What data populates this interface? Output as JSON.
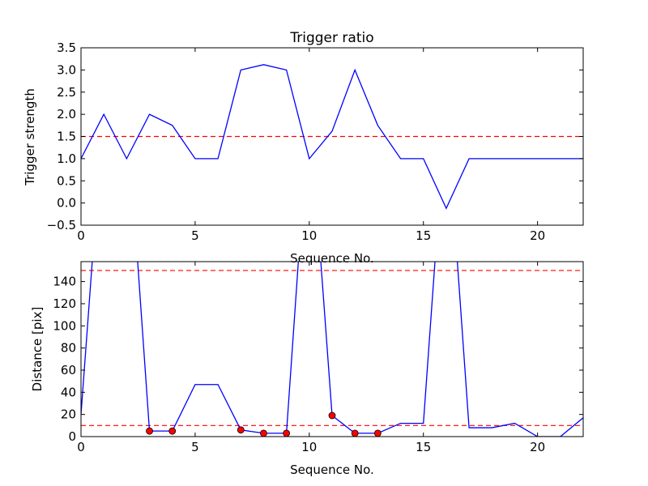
{
  "chart_data": [
    {
      "type": "line",
      "title": "Trigger ratio",
      "xlabel": "Sequence No.",
      "ylabel": "Trigger strength",
      "xlim": [
        0,
        22
      ],
      "ylim": [
        -0.5,
        3.5
      ],
      "xticks": [
        0,
        5,
        10,
        15,
        20
      ],
      "xtick_labels": [
        "0",
        "5",
        "10",
        "15",
        "20"
      ],
      "yticks": [
        -0.5,
        0.0,
        0.5,
        1.0,
        1.5,
        2.0,
        2.5,
        3.0,
        3.5
      ],
      "ytick_labels": [
        "−0.5",
        "0.0",
        "0.5",
        "1.0",
        "1.5",
        "2.0",
        "2.5",
        "3.0",
        "3.5"
      ],
      "grid": false,
      "series": [
        {
          "color": "#0000ff",
          "x": [
            0,
            1,
            2,
            3,
            4,
            5,
            6,
            7,
            8,
            9,
            10,
            11,
            12,
            13,
            14,
            15,
            16,
            17,
            18,
            19,
            20,
            21,
            22
          ],
          "y": [
            1.0,
            2.0,
            1.0,
            2.0,
            1.75,
            1.0,
            1.0,
            3.0,
            3.12,
            3.0,
            1.0,
            1.62,
            3.0,
            1.75,
            1.0,
            1.0,
            -0.12,
            1.0,
            1.0,
            1.0,
            1.0,
            1.0,
            1.0
          ]
        }
      ],
      "hlines": [
        {
          "y": 1.5,
          "color": "#ff0000",
          "style": "dashed"
        }
      ]
    },
    {
      "type": "line",
      "title": "",
      "xlabel": "Sequence No.",
      "ylabel": "Distance [pix]",
      "xlim": [
        0,
        22
      ],
      "ylim": [
        0,
        158
      ],
      "xticks": [
        0,
        5,
        10,
        15,
        20
      ],
      "xtick_labels": [
        "0",
        "5",
        "10",
        "15",
        "20"
      ],
      "yticks": [
        0,
        20,
        40,
        60,
        80,
        100,
        120,
        140
      ],
      "ytick_labels": [
        "0",
        "20",
        "40",
        "60",
        "80",
        "100",
        "120",
        "140"
      ],
      "grid": false,
      "series": [
        {
          "color": "#0000ff",
          "x": [
            0,
            1,
            2,
            3,
            4,
            5,
            6,
            7,
            8,
            9,
            10,
            11,
            12,
            13,
            14,
            15,
            16,
            17,
            18,
            19,
            20,
            21,
            22
          ],
          "y": [
            20,
            300,
            300,
            5,
            5,
            47,
            47,
            6,
            3,
            3,
            300,
            19,
            3,
            3,
            12,
            12,
            300,
            8,
            8,
            12,
            0,
            0,
            17
          ]
        }
      ],
      "markers": {
        "color": "#ff0000",
        "x": [
          3,
          4,
          7,
          8,
          9,
          11,
          12,
          13
        ],
        "y": [
          5,
          5,
          6,
          3,
          3,
          19,
          3,
          3
        ]
      },
      "hlines": [
        {
          "y": 150,
          "color": "#ff0000",
          "style": "dashed"
        },
        {
          "y": 10,
          "color": "#ff0000",
          "style": "dashed"
        }
      ]
    }
  ]
}
